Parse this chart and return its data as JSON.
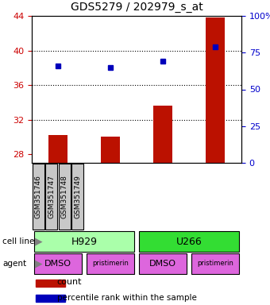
{
  "title": "GDS5279 / 202979_s_at",
  "samples": [
    "GSM351746",
    "GSM351747",
    "GSM351748",
    "GSM351749"
  ],
  "counts": [
    30.2,
    30.0,
    33.6,
    43.8
  ],
  "percentile_ranks": [
    66,
    65,
    69,
    79
  ],
  "ylim_left": [
    27,
    44
  ],
  "ylim_right": [
    0,
    100
  ],
  "yticks_left": [
    28,
    32,
    36,
    40,
    44
  ],
  "yticks_right": [
    0,
    25,
    50,
    75,
    100
  ],
  "cell_line_groups": [
    {
      "label": "H929",
      "cols": [
        0,
        1
      ],
      "color": "#AAFFAA"
    },
    {
      "label": "U266",
      "cols": [
        2,
        3
      ],
      "color": "#33DD33"
    }
  ],
  "agents": [
    "DMSO",
    "pristimerin",
    "DMSO",
    "pristimerin"
  ],
  "agent_color": "#DD66DD",
  "bar_color": "#BB1100",
  "dot_color": "#0000BB",
  "sample_box_color": "#C8C8C8",
  "left_axis_color": "#CC0000",
  "right_axis_color": "#0000CC",
  "grid_ticks": [
    32,
    36,
    40
  ]
}
